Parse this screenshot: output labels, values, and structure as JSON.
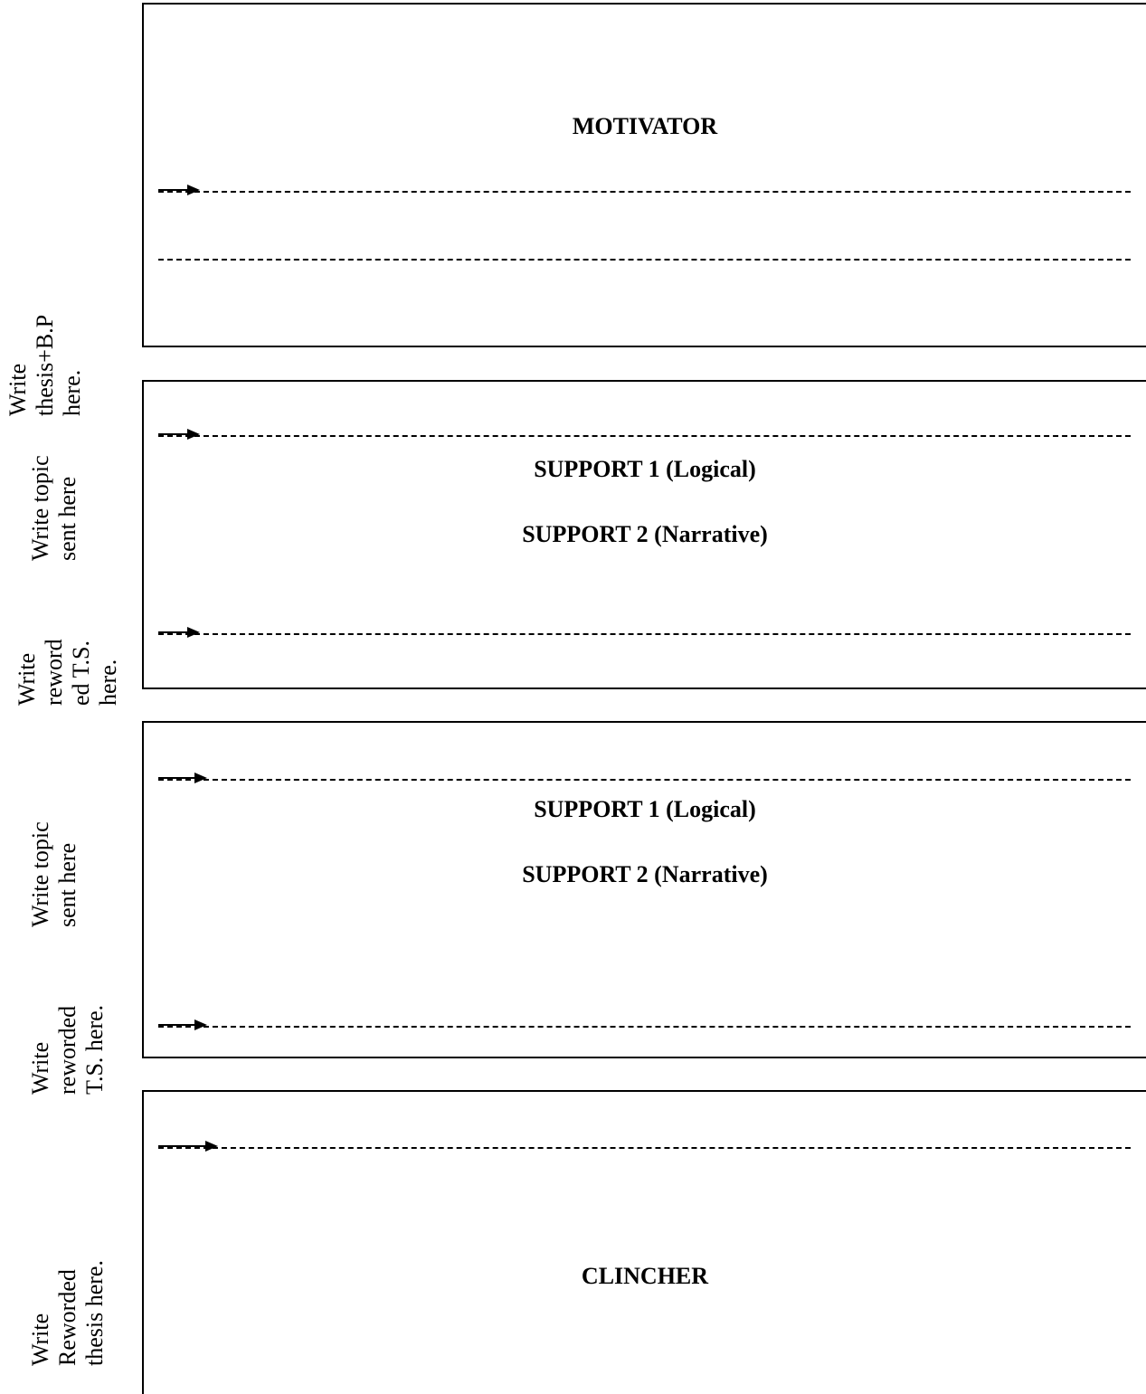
{
  "sections": [
    {
      "heading": "MOTIVATOR",
      "labels": [
        {
          "lines": [
            "Write",
            "thesis+B.P",
            "here."
          ]
        }
      ]
    },
    {
      "headings": [
        "SUPPORT 1 (Logical)",
        "SUPPORT 2 (Narrative)"
      ],
      "labels": [
        {
          "lines": [
            "Write topic",
            "sent here"
          ]
        },
        {
          "lines": [
            "Write",
            "reword",
            "ed T.S.",
            "here."
          ]
        }
      ]
    },
    {
      "headings": [
        "SUPPORT 1 (Logical)",
        "SUPPORT 2 (Narrative)"
      ],
      "labels": [
        {
          "lines": [
            "Write topic",
            "sent here"
          ]
        },
        {
          "lines": [
            "Write",
            "reworded",
            "T.S. here."
          ]
        }
      ]
    },
    {
      "heading": "CLINCHER",
      "labels": [
        {
          "lines": [
            "Write",
            "Reworded",
            "thesis here."
          ]
        }
      ]
    }
  ]
}
